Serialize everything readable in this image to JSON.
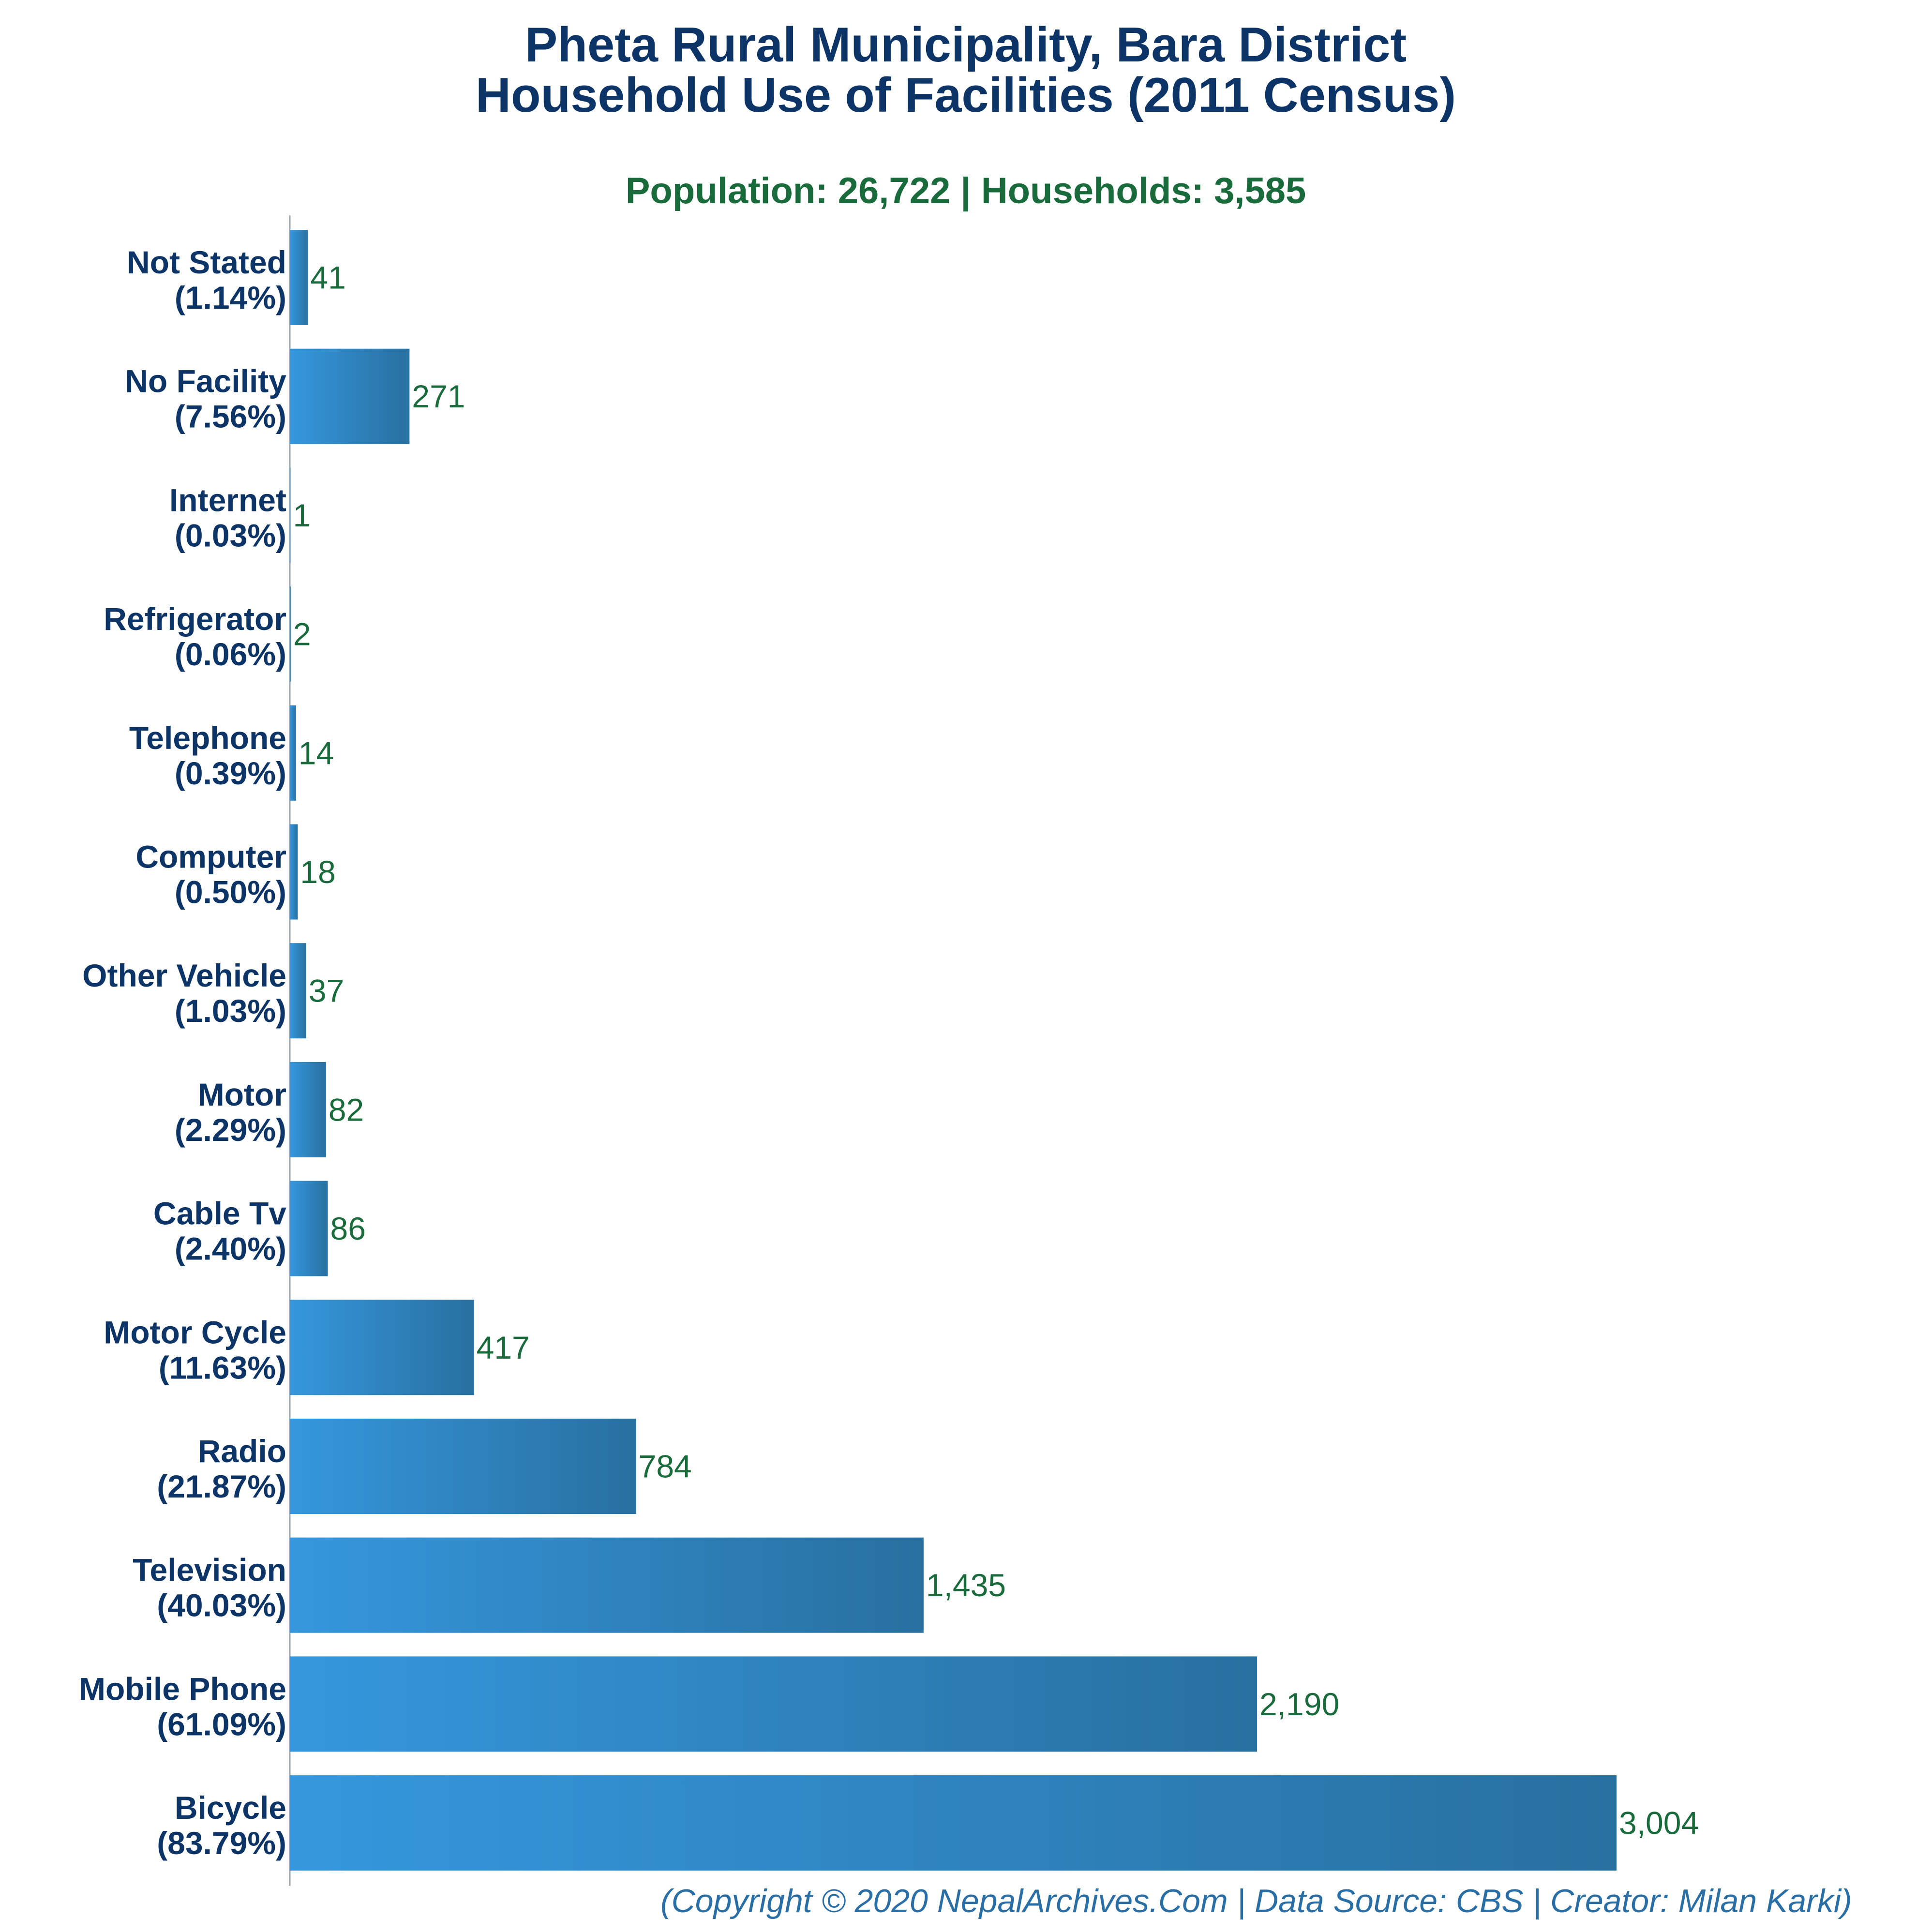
{
  "chart_data": {
    "type": "bar",
    "orientation": "horizontal",
    "title_line1": "Pheta Rural Municipality, Bara District",
    "title_line2": "Household Use of Facilities (2011 Census)",
    "subtitle": "Population: 26,722 | Households: 3,585",
    "footer": "(Copyright © 2020 NepalArchives.Com | Data Source: CBS | Creator: Milan Karki)",
    "bar_color_start": "#3597dd",
    "bar_color_end": "#2870a0",
    "categories": [
      {
        "label": "Not Stated",
        "pct": "(1.14%)",
        "value": 41,
        "value_label": "41"
      },
      {
        "label": "No Facility",
        "pct": "(7.56%)",
        "value": 271,
        "value_label": "271"
      },
      {
        "label": "Internet",
        "pct": "(0.03%)",
        "value": 1,
        "value_label": "1"
      },
      {
        "label": "Refrigerator",
        "pct": "(0.06%)",
        "value": 2,
        "value_label": "2"
      },
      {
        "label": "Telephone",
        "pct": "(0.39%)",
        "value": 14,
        "value_label": "14"
      },
      {
        "label": "Computer",
        "pct": "(0.50%)",
        "value": 18,
        "value_label": "18"
      },
      {
        "label": "Other Vehicle",
        "pct": "(1.03%)",
        "value": 37,
        "value_label": "37"
      },
      {
        "label": "Motor",
        "pct": "(2.29%)",
        "value": 82,
        "value_label": "82"
      },
      {
        "label": "Cable Tv",
        "pct": "(2.40%)",
        "value": 86,
        "value_label": "86"
      },
      {
        "label": "Motor Cycle",
        "pct": "(11.63%)",
        "value": 417,
        "value_label": "417"
      },
      {
        "label": "Radio",
        "pct": "(21.87%)",
        "value": 784,
        "value_label": "784"
      },
      {
        "label": "Television",
        "pct": "(40.03%)",
        "value": 1435,
        "value_label": "1,435"
      },
      {
        "label": "Mobile Phone",
        "pct": "(61.09%)",
        "value": 2190,
        "value_label": "2,190"
      },
      {
        "label": "Bicycle",
        "pct": "(83.79%)",
        "value": 3004,
        "value_label": "3,004"
      }
    ]
  }
}
